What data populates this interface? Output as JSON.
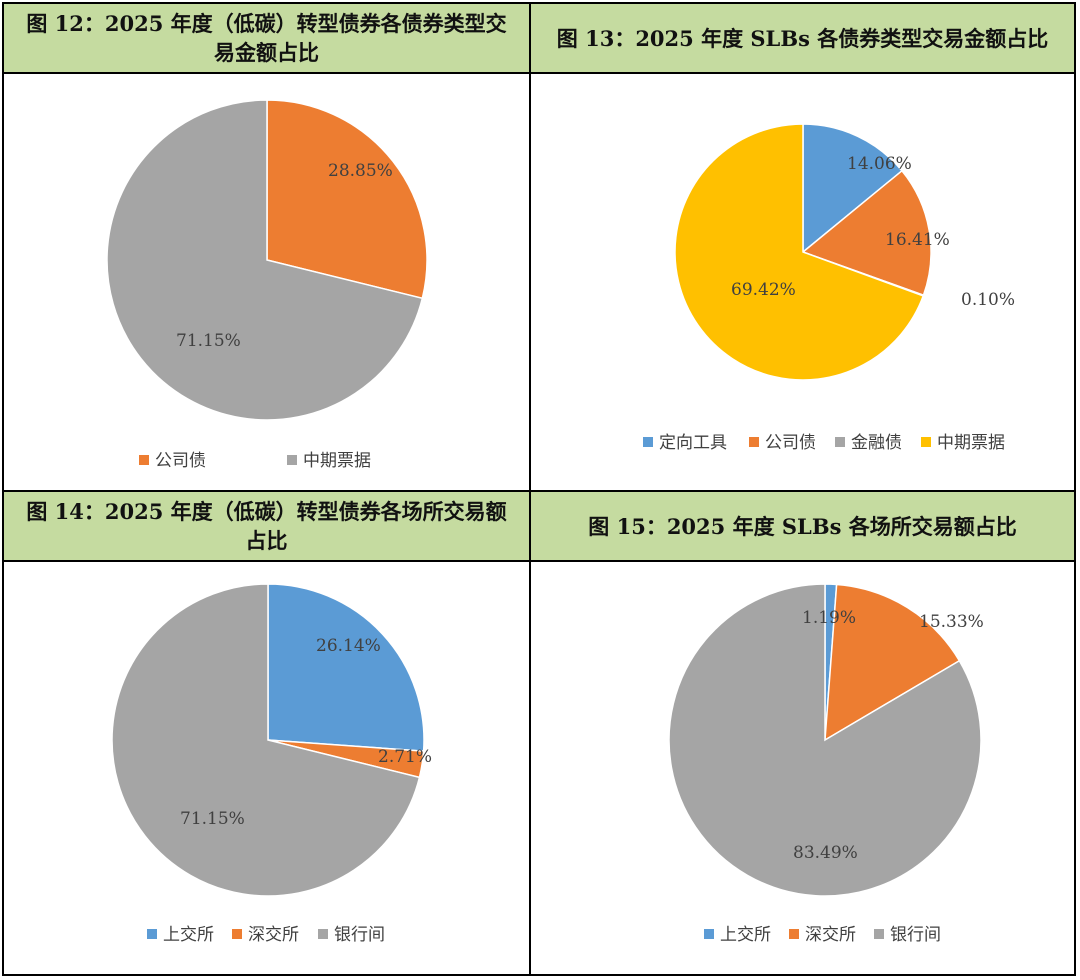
{
  "panels": [
    {
      "title": "图 12：2025 年度（低碳）转型债券各债券类型交易金额占比",
      "chart_data": {
        "type": "pie",
        "legend": [
          "公司债",
          "中期票据"
        ],
        "colors": [
          "#ED7D31",
          "#A5A5A5"
        ],
        "values": [
          28.85,
          71.15
        ],
        "labels": [
          "28.85%",
          "71.15%"
        ],
        "legend_position": "bottom"
      }
    },
    {
      "title": "图 13：2025 年度 SLBs 各债券类型交易金额占比",
      "chart_data": {
        "type": "pie",
        "legend": [
          "定向工具",
          "公司债",
          "金融债",
          "中期票据"
        ],
        "colors": [
          "#5B9BD5",
          "#ED7D31",
          "#A5A5A5",
          "#FFC000"
        ],
        "values": [
          14.06,
          16.41,
          0.1,
          69.42
        ],
        "labels": [
          "14.06%",
          "16.41%",
          "0.10%",
          "69.42%"
        ],
        "legend_position": "bottom"
      }
    },
    {
      "title": "图 14：2025 年度（低碳）转型债券各场所交易额占比",
      "chart_data": {
        "type": "pie",
        "legend": [
          "上交所",
          "深交所",
          "银行间"
        ],
        "colors": [
          "#5B9BD5",
          "#ED7D31",
          "#A5A5A5"
        ],
        "values": [
          26.14,
          2.71,
          71.15
        ],
        "labels": [
          "26.14%",
          "2.71%",
          "71.15%"
        ],
        "legend_position": "bottom"
      }
    },
    {
      "title": "图 15：2025 年度 SLBs 各场所交易额占比",
      "chart_data": {
        "type": "pie",
        "legend": [
          "上交所",
          "深交所",
          "银行间"
        ],
        "colors": [
          "#5B9BD5",
          "#ED7D31",
          "#A5A5A5"
        ],
        "values": [
          1.19,
          15.33,
          83.49
        ],
        "labels": [
          "1.19%",
          "15.33%",
          "83.49%"
        ],
        "legend_position": "bottom"
      }
    }
  ]
}
